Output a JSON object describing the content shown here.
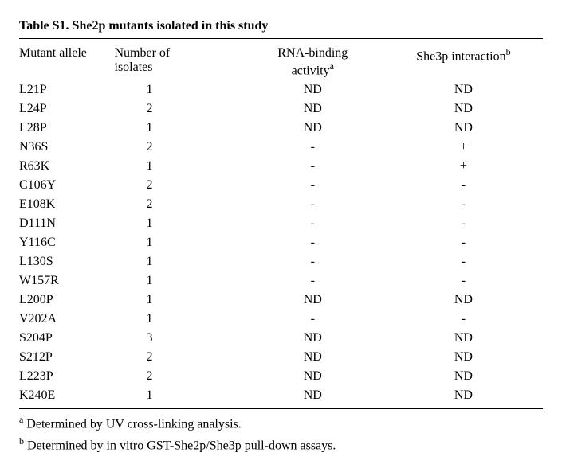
{
  "title": "Table S1. She2p mutants isolated in this study",
  "headers": {
    "allele": "Mutant allele",
    "isolates_l1": "Number of",
    "isolates_l2": "isolates",
    "rna_l1": "RNA-binding",
    "rna_l2": "activity",
    "she3p": "She3p interaction"
  },
  "sup": {
    "a": "a",
    "b": "b"
  },
  "rows": [
    {
      "allele": "L21P",
      "isolates": "1",
      "rna": "ND",
      "she3p": "ND"
    },
    {
      "allele": "L24P",
      "isolates": "2",
      "rna": "ND",
      "she3p": "ND"
    },
    {
      "allele": "L28P",
      "isolates": "1",
      "rna": "ND",
      "she3p": "ND"
    },
    {
      "allele": "N36S",
      "isolates": "2",
      "rna": "-",
      "she3p": "+"
    },
    {
      "allele": "R63K",
      "isolates": "1",
      "rna": "-",
      "she3p": "+"
    },
    {
      "allele": "C106Y",
      "isolates": "2",
      "rna": "-",
      "she3p": "-"
    },
    {
      "allele": "E108K",
      "isolates": "2",
      "rna": "-",
      "she3p": "-"
    },
    {
      "allele": "D111N",
      "isolates": "1",
      "rna": "-",
      "she3p": "-"
    },
    {
      "allele": "Y116C",
      "isolates": "1",
      "rna": "-",
      "she3p": "-"
    },
    {
      "allele": "L130S",
      "isolates": "1",
      "rna": "-",
      "she3p": "-"
    },
    {
      "allele": "W157R",
      "isolates": "1",
      "rna": "-",
      "she3p": "-"
    },
    {
      "allele": "L200P",
      "isolates": "1",
      "rna": "ND",
      "she3p": "ND"
    },
    {
      "allele": "V202A",
      "isolates": "1",
      "rna": "-",
      "she3p": "-"
    },
    {
      "allele": "S204P",
      "isolates": "3",
      "rna": "ND",
      "she3p": "ND"
    },
    {
      "allele": "S212P",
      "isolates": "2",
      "rna": "ND",
      "she3p": "ND"
    },
    {
      "allele": "L223P",
      "isolates": "2",
      "rna": "ND",
      "she3p": "ND"
    },
    {
      "allele": "K240E",
      "isolates": "1",
      "rna": "ND",
      "she3p": "ND"
    }
  ],
  "footnotes": {
    "a": " Determined by UV cross-linking analysis.",
    "b": " Determined by in vitro GST-She2p/She3p pull-down assays."
  }
}
